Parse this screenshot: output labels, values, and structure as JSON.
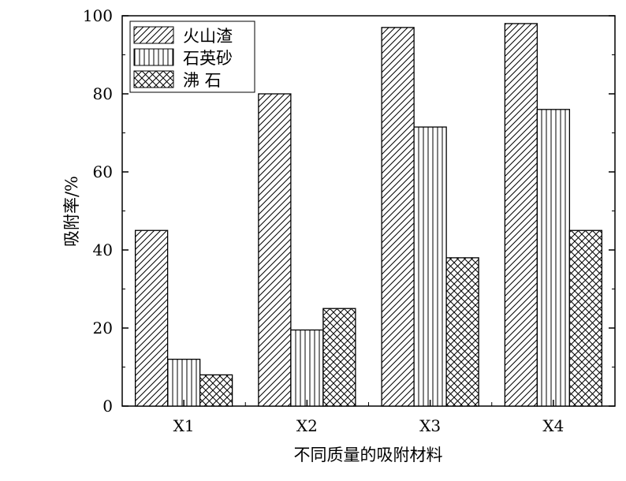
{
  "chart_data": {
    "type": "bar",
    "title": "",
    "xlabel": "不同质量的吸附材料",
    "ylabel": "吸附率/%",
    "ylim": [
      0,
      100
    ],
    "yticks": [
      0,
      20,
      40,
      60,
      80,
      100
    ],
    "categories": [
      "X1",
      "X2",
      "X3",
      "X4"
    ],
    "series": [
      {
        "name": "火山渣",
        "values": [
          45,
          80,
          97,
          98
        ],
        "pattern": "diagonal-hatch"
      },
      {
        "name": "石英砂",
        "values": [
          12,
          19.5,
          71.5,
          76
        ],
        "pattern": "vertical-lines"
      },
      {
        "name": "沸 石",
        "values": [
          8,
          25,
          38,
          45
        ],
        "pattern": "crosshatch"
      }
    ],
    "legend_position": "top-left",
    "grid": false
  }
}
